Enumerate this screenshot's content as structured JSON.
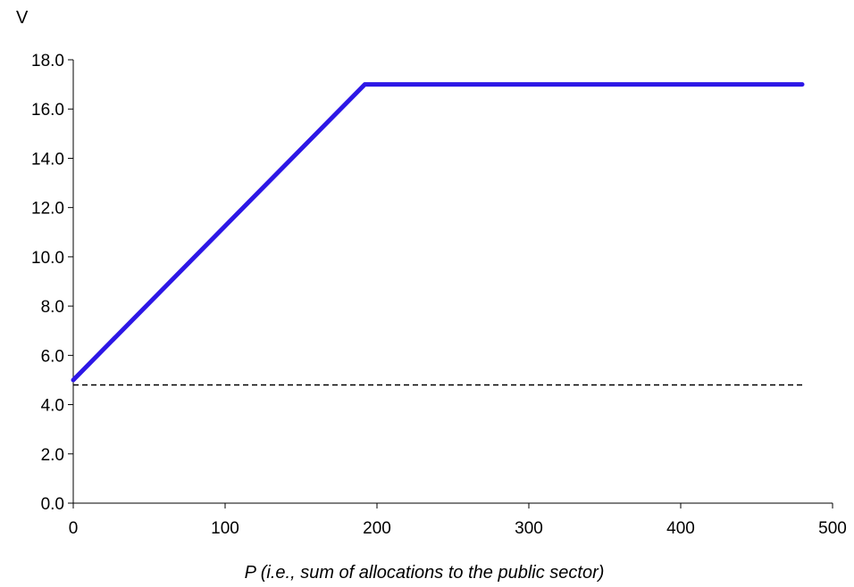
{
  "chart_data": {
    "type": "line",
    "ylabel": "V",
    "xlabel": "P (i.e., sum of allocations to the public sector)",
    "xlim": [
      0,
      500
    ],
    "ylim": [
      0,
      18
    ],
    "x_ticks": [
      "0",
      "100",
      "200",
      "300",
      "400",
      "500"
    ],
    "y_ticks": [
      "0.0",
      "2.0",
      "4.0",
      "6.0",
      "8.0",
      "10.0",
      "12.0",
      "14.0",
      "16.0",
      "18.0"
    ],
    "grid": false,
    "legend": "none",
    "series": [
      {
        "style": "solid",
        "color": "#2d17e6",
        "x": [
          0,
          192,
          480
        ],
        "y": [
          5.0,
          17.0,
          17.0
        ]
      },
      {
        "style": "dashed",
        "color": "#000000",
        "x": [
          0,
          480
        ],
        "y": [
          4.8,
          4.8
        ]
      }
    ]
  }
}
